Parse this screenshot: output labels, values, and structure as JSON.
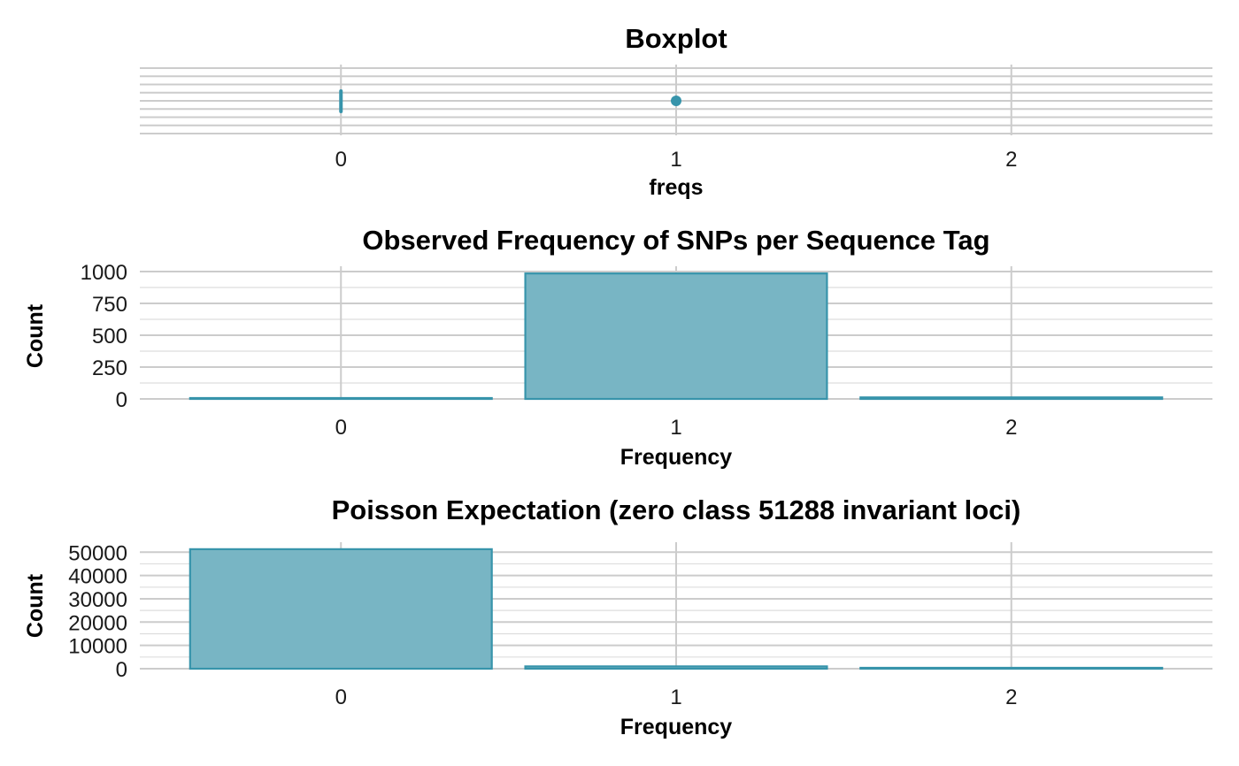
{
  "colors": {
    "fill": "#78b5c4",
    "stroke": "#3794ab",
    "grid": "#cccccc"
  },
  "chart_data": [
    {
      "type": "boxplot",
      "title": "Boxplot",
      "xlabel": "freqs",
      "ylabel": "",
      "xlim": [
        -0.6,
        2.6
      ],
      "xticks": [
        "0",
        "1",
        "2"
      ],
      "box": {
        "q1": 1,
        "median": 1,
        "q3": 1,
        "whisker_low": 1,
        "whisker_high": 1
      },
      "outliers": [
        {
          "x": 0,
          "label": "0"
        },
        {
          "x": 1,
          "label": "1"
        }
      ],
      "grid": true
    },
    {
      "type": "bar",
      "title": "Observed Frequency of SNPs per Sequence Tag",
      "xlabel": "Frequency",
      "ylabel": "Count",
      "categories": [
        "0",
        "1",
        "2"
      ],
      "values": [
        0,
        985,
        12
      ],
      "ylim": [
        0,
        1000
      ],
      "yticks": [
        "0",
        "250",
        "500",
        "750",
        "1000"
      ],
      "grid": true
    },
    {
      "type": "bar",
      "title": "Poisson Expectation (zero class 51288 invariant loci)",
      "xlabel": "Frequency",
      "ylabel": "Count",
      "categories": [
        "0",
        "1",
        "2"
      ],
      "values": [
        51288,
        1000,
        10
      ],
      "ylim": [
        0,
        52000
      ],
      "yticks": [
        "0",
        "10000",
        "20000",
        "30000",
        "40000",
        "50000"
      ],
      "grid": true
    }
  ]
}
